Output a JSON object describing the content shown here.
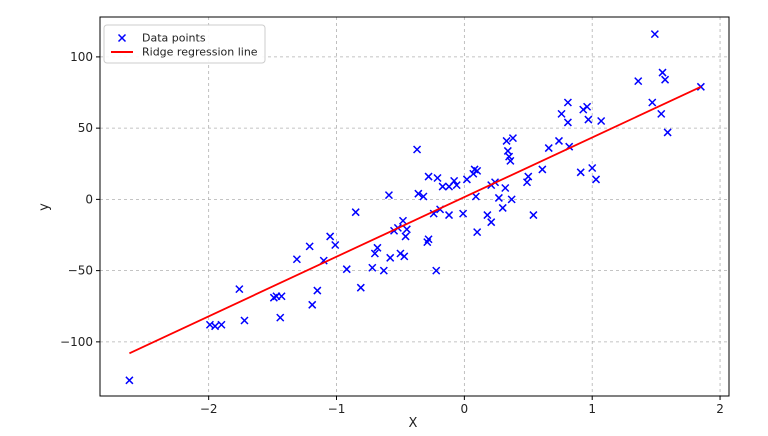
{
  "chart_data": {
    "type": "scatter",
    "title": "",
    "xlabel": "X",
    "ylabel": "y",
    "xlim": [
      -2.85,
      2.07
    ],
    "ylim": [
      -138,
      128
    ],
    "xticks": [
      -2,
      -1,
      0,
      1,
      2
    ],
    "yticks": [
      -100,
      -50,
      0,
      50,
      100
    ],
    "xtick_labels": [
      "−2",
      "−1",
      "0",
      "1",
      "2"
    ],
    "ytick_labels": [
      "−100",
      "−50",
      "0",
      "50",
      "100"
    ],
    "grid": true,
    "legend_position": "top-left",
    "series": [
      {
        "name": "Data points",
        "kind": "scatter",
        "marker": "x",
        "color": "#0000ff",
        "points": [
          [
            -2.62,
            -127
          ],
          [
            -1.99,
            -88
          ],
          [
            -1.95,
            -89
          ],
          [
            -1.9,
            -88
          ],
          [
            -1.76,
            -63
          ],
          [
            -1.72,
            -85
          ],
          [
            -1.49,
            -69
          ],
          [
            -1.47,
            -68
          ],
          [
            -1.43,
            -68
          ],
          [
            -1.44,
            -83
          ],
          [
            -1.31,
            -42
          ],
          [
            -1.21,
            -33
          ],
          [
            -1.19,
            -74
          ],
          [
            -1.15,
            -64
          ],
          [
            -1.1,
            -43
          ],
          [
            -1.05,
            -26
          ],
          [
            -1.01,
            -32
          ],
          [
            -0.92,
            -49
          ],
          [
            -0.85,
            -9
          ],
          [
            -0.81,
            -62
          ],
          [
            -0.72,
            -48
          ],
          [
            -0.7,
            -38
          ],
          [
            -0.68,
            -34
          ],
          [
            -0.63,
            -50
          ],
          [
            -0.59,
            3
          ],
          [
            -0.58,
            -41
          ],
          [
            -0.55,
            -22
          ],
          [
            -0.52,
            -20
          ],
          [
            -0.5,
            -38
          ],
          [
            -0.48,
            -15
          ],
          [
            -0.47,
            -40
          ],
          [
            -0.45,
            -21
          ],
          [
            -0.46,
            -26
          ],
          [
            -0.37,
            35
          ],
          [
            -0.36,
            4
          ],
          [
            -0.32,
            2
          ],
          [
            -0.29,
            -30
          ],
          [
            -0.28,
            -28
          ],
          [
            -0.28,
            16
          ],
          [
            -0.24,
            -10
          ],
          [
            -0.22,
            -50
          ],
          [
            -0.21,
            15
          ],
          [
            -0.19,
            -7
          ],
          [
            -0.17,
            9
          ],
          [
            -0.12,
            -11
          ],
          [
            -0.12,
            9
          ],
          [
            -0.08,
            13
          ],
          [
            -0.06,
            10
          ],
          [
            -0.01,
            -10
          ],
          [
            0.02,
            14
          ],
          [
            0.07,
            18
          ],
          [
            0.08,
            21
          ],
          [
            0.1,
            -23
          ],
          [
            0.1,
            20
          ],
          [
            0.09,
            2
          ],
          [
            0.18,
            -11
          ],
          [
            0.21,
            10
          ],
          [
            0.21,
            -16
          ],
          [
            0.24,
            12
          ],
          [
            0.27,
            1
          ],
          [
            0.3,
            -6
          ],
          [
            0.32,
            8
          ],
          [
            0.33,
            41
          ],
          [
            0.34,
            34
          ],
          [
            0.35,
            30
          ],
          [
            0.36,
            27
          ],
          [
            0.37,
            0
          ],
          [
            0.38,
            43
          ],
          [
            0.49,
            12
          ],
          [
            0.5,
            16
          ],
          [
            0.54,
            -11
          ],
          [
            0.61,
            21
          ],
          [
            0.66,
            36
          ],
          [
            0.74,
            41
          ],
          [
            0.76,
            60
          ],
          [
            0.81,
            68
          ],
          [
            0.81,
            54
          ],
          [
            0.82,
            37
          ],
          [
            0.91,
            19
          ],
          [
            0.93,
            63
          ],
          [
            0.96,
            65
          ],
          [
            0.97,
            56
          ],
          [
            1.0,
            22
          ],
          [
            1.03,
            14
          ],
          [
            1.07,
            55
          ],
          [
            1.36,
            83
          ],
          [
            1.47,
            68
          ],
          [
            1.49,
            116
          ],
          [
            1.54,
            60
          ],
          [
            1.55,
            89
          ],
          [
            1.57,
            84
          ],
          [
            1.59,
            47
          ],
          [
            1.85,
            79
          ]
        ]
      },
      {
        "name": "Ridge regression line",
        "kind": "line",
        "color": "#ff0000",
        "x": [
          -2.62,
          1.85
        ],
        "y": [
          -108,
          79
        ]
      }
    ]
  }
}
